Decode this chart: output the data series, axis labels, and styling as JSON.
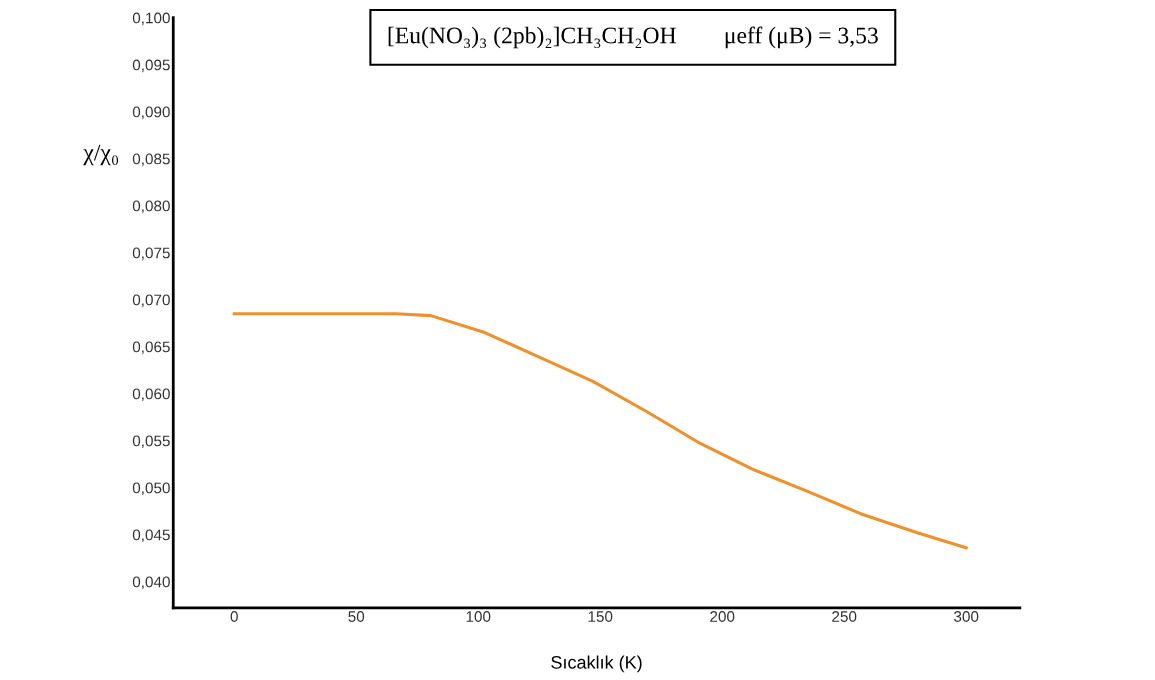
{
  "chart_data": {
    "type": "line",
    "xlabel": "Sıcaklık (K)",
    "ylabel": "χ/χ₀",
    "annotations": [
      "[Eu(NO₃)₃ (2pb)₂]CH₃CH₂OH        μeff (μB) = 3,53"
    ],
    "x": [
      0,
      66,
      80.6,
      102.7,
      124.8,
      147,
      169,
      191,
      213,
      235,
      257,
      280,
      300
    ],
    "series": [
      {
        "color": "#f0902a",
        "values": [
          0.0685,
          0.0685,
          0.0683,
          0.0665,
          0.0639,
          0.0613,
          0.0581,
          0.0547,
          0.0519,
          0.0496,
          0.0472,
          0.0452,
          0.0436
        ]
      }
    ],
    "xlim": [
      -25,
      322
    ],
    "ylim": [
      0.0372,
      0.1
    ],
    "xticks": [
      0,
      50,
      100,
      150,
      200,
      250,
      300
    ],
    "yticks": [
      {
        "value": 0.04,
        "label": "0,040"
      },
      {
        "value": 0.045,
        "label": "0,045"
      },
      {
        "value": 0.05,
        "label": "0,050"
      },
      {
        "value": 0.055,
        "label": "0,055"
      },
      {
        "value": 0.06,
        "label": "0,060"
      },
      {
        "value": 0.065,
        "label": "0,065"
      },
      {
        "value": 0.07,
        "label": "0,070"
      },
      {
        "value": 0.075,
        "label": "0,075"
      },
      {
        "value": 0.08,
        "label": "0,080"
      },
      {
        "value": 0.085,
        "label": "0,085"
      },
      {
        "value": 0.09,
        "label": "0,090"
      },
      {
        "value": 0.095,
        "label": "0,095"
      },
      {
        "value": 0.1,
        "label": "0,100"
      }
    ],
    "grid": false,
    "legend": false,
    "marker": "none",
    "line_style": "solid"
  }
}
